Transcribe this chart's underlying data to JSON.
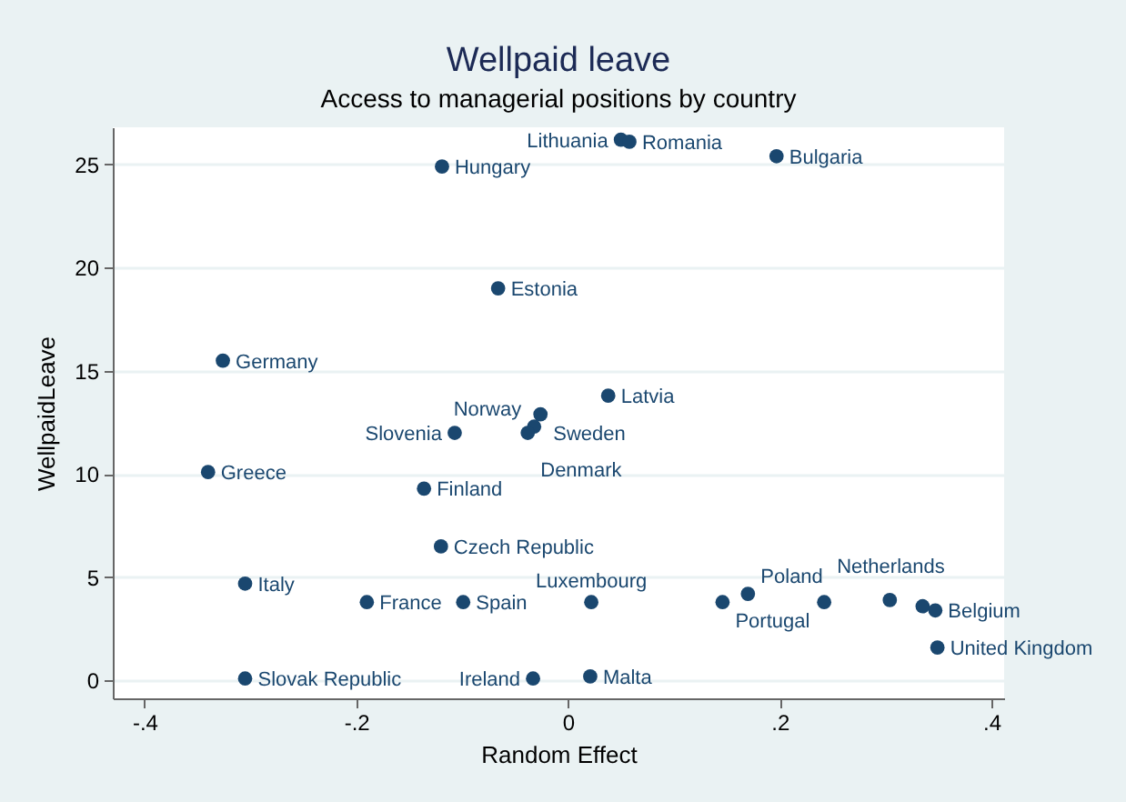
{
  "chart_data": {
    "type": "scatter",
    "title": "Wellpaid leave",
    "subtitle": "Access to managerial positions by country",
    "xlabel": "Random Effect",
    "ylabel": "WellpaidLeave",
    "x": [
      0.05,
      0.058,
      0.197,
      -0.119,
      -0.066,
      -0.326,
      0.038,
      -0.026,
      -0.107,
      -0.032,
      -0.038,
      -0.34,
      -0.136,
      -0.12,
      -0.305,
      -0.19,
      -0.099,
      0.022,
      0.146,
      0.17,
      0.242,
      0.304,
      0.335,
      0.347,
      0.349,
      -0.305,
      -0.033,
      0.021
    ],
    "series": [
      {
        "color": "#1a476f",
        "values": [
          26.2,
          26.1,
          25.4,
          24.9,
          19.0,
          15.5,
          13.8,
          12.9,
          12.0,
          12.3,
          12.0,
          10.1,
          9.3,
          6.5,
          4.7,
          3.8,
          3.8,
          3.8,
          3.8,
          4.2,
          3.8,
          3.9,
          3.6,
          3.4,
          1.6,
          0.1,
          0.1,
          0.2
        ]
      }
    ],
    "annotations": [
      {
        "text": "Lithuania",
        "x": 0.05,
        "y": 26.2
      },
      {
        "text": "Romania",
        "x": 0.058,
        "y": 26.1
      },
      {
        "text": "Bulgaria",
        "x": 0.197,
        "y": 25.4
      },
      {
        "text": "Hungary",
        "x": -0.119,
        "y": 24.9
      },
      {
        "text": "Estonia",
        "x": -0.066,
        "y": 19.0
      },
      {
        "text": "Germany",
        "x": -0.326,
        "y": 15.5
      },
      {
        "text": "Latvia",
        "x": 0.038,
        "y": 13.8
      },
      {
        "text": "Sweden",
        "x": -0.026,
        "y": 12.9
      },
      {
        "text": "Slovenia",
        "x": -0.107,
        "y": 12.0
      },
      {
        "text": "Norway",
        "x": -0.032,
        "y": 12.3
      },
      {
        "text": "Denmark",
        "x": -0.038,
        "y": 12.0
      },
      {
        "text": "Greece",
        "x": -0.34,
        "y": 10.1
      },
      {
        "text": "Finland",
        "x": -0.136,
        "y": 9.3
      },
      {
        "text": "Czech Republic",
        "x": -0.12,
        "y": 6.5
      },
      {
        "text": "Italy",
        "x": -0.305,
        "y": 4.7
      },
      {
        "text": "France",
        "x": -0.19,
        "y": 3.8
      },
      {
        "text": "Spain",
        "x": -0.099,
        "y": 3.8
      },
      {
        "text": "Luxembourg",
        "x": 0.022,
        "y": 3.8
      },
      {
        "text": "Portugal",
        "x": 0.146,
        "y": 3.8
      },
      {
        "text": "Poland",
        "x": 0.17,
        "y": 4.2
      },
      {
        "text": "Netherlands",
        "x": 0.242,
        "y": 3.8
      },
      {
        "text": "Belgium",
        "x": 0.347,
        "y": 3.4
      },
      {
        "text": "United Kingdom",
        "x": 0.349,
        "y": 1.6
      },
      {
        "text": "Slovak Republic",
        "x": -0.305,
        "y": 0.1
      },
      {
        "text": "Ireland",
        "x": -0.033,
        "y": 0.1
      },
      {
        "text": "Malta",
        "x": 0.021,
        "y": 0.2
      }
    ],
    "xlim": [
      -0.43,
      0.412
    ],
    "ylim": [
      -0.86,
      26.8
    ],
    "xticks": [
      {
        "value": -0.4,
        "label": "-.4"
      },
      {
        "value": -0.2,
        "label": "-.2"
      },
      0,
      {
        "value": 0.2,
        "label": ".2"
      },
      {
        "value": 0.4,
        "label": ".4"
      }
    ],
    "yticks": [
      0,
      5,
      10,
      15,
      20,
      25
    ],
    "grid": "y",
    "marker": "circle"
  }
}
